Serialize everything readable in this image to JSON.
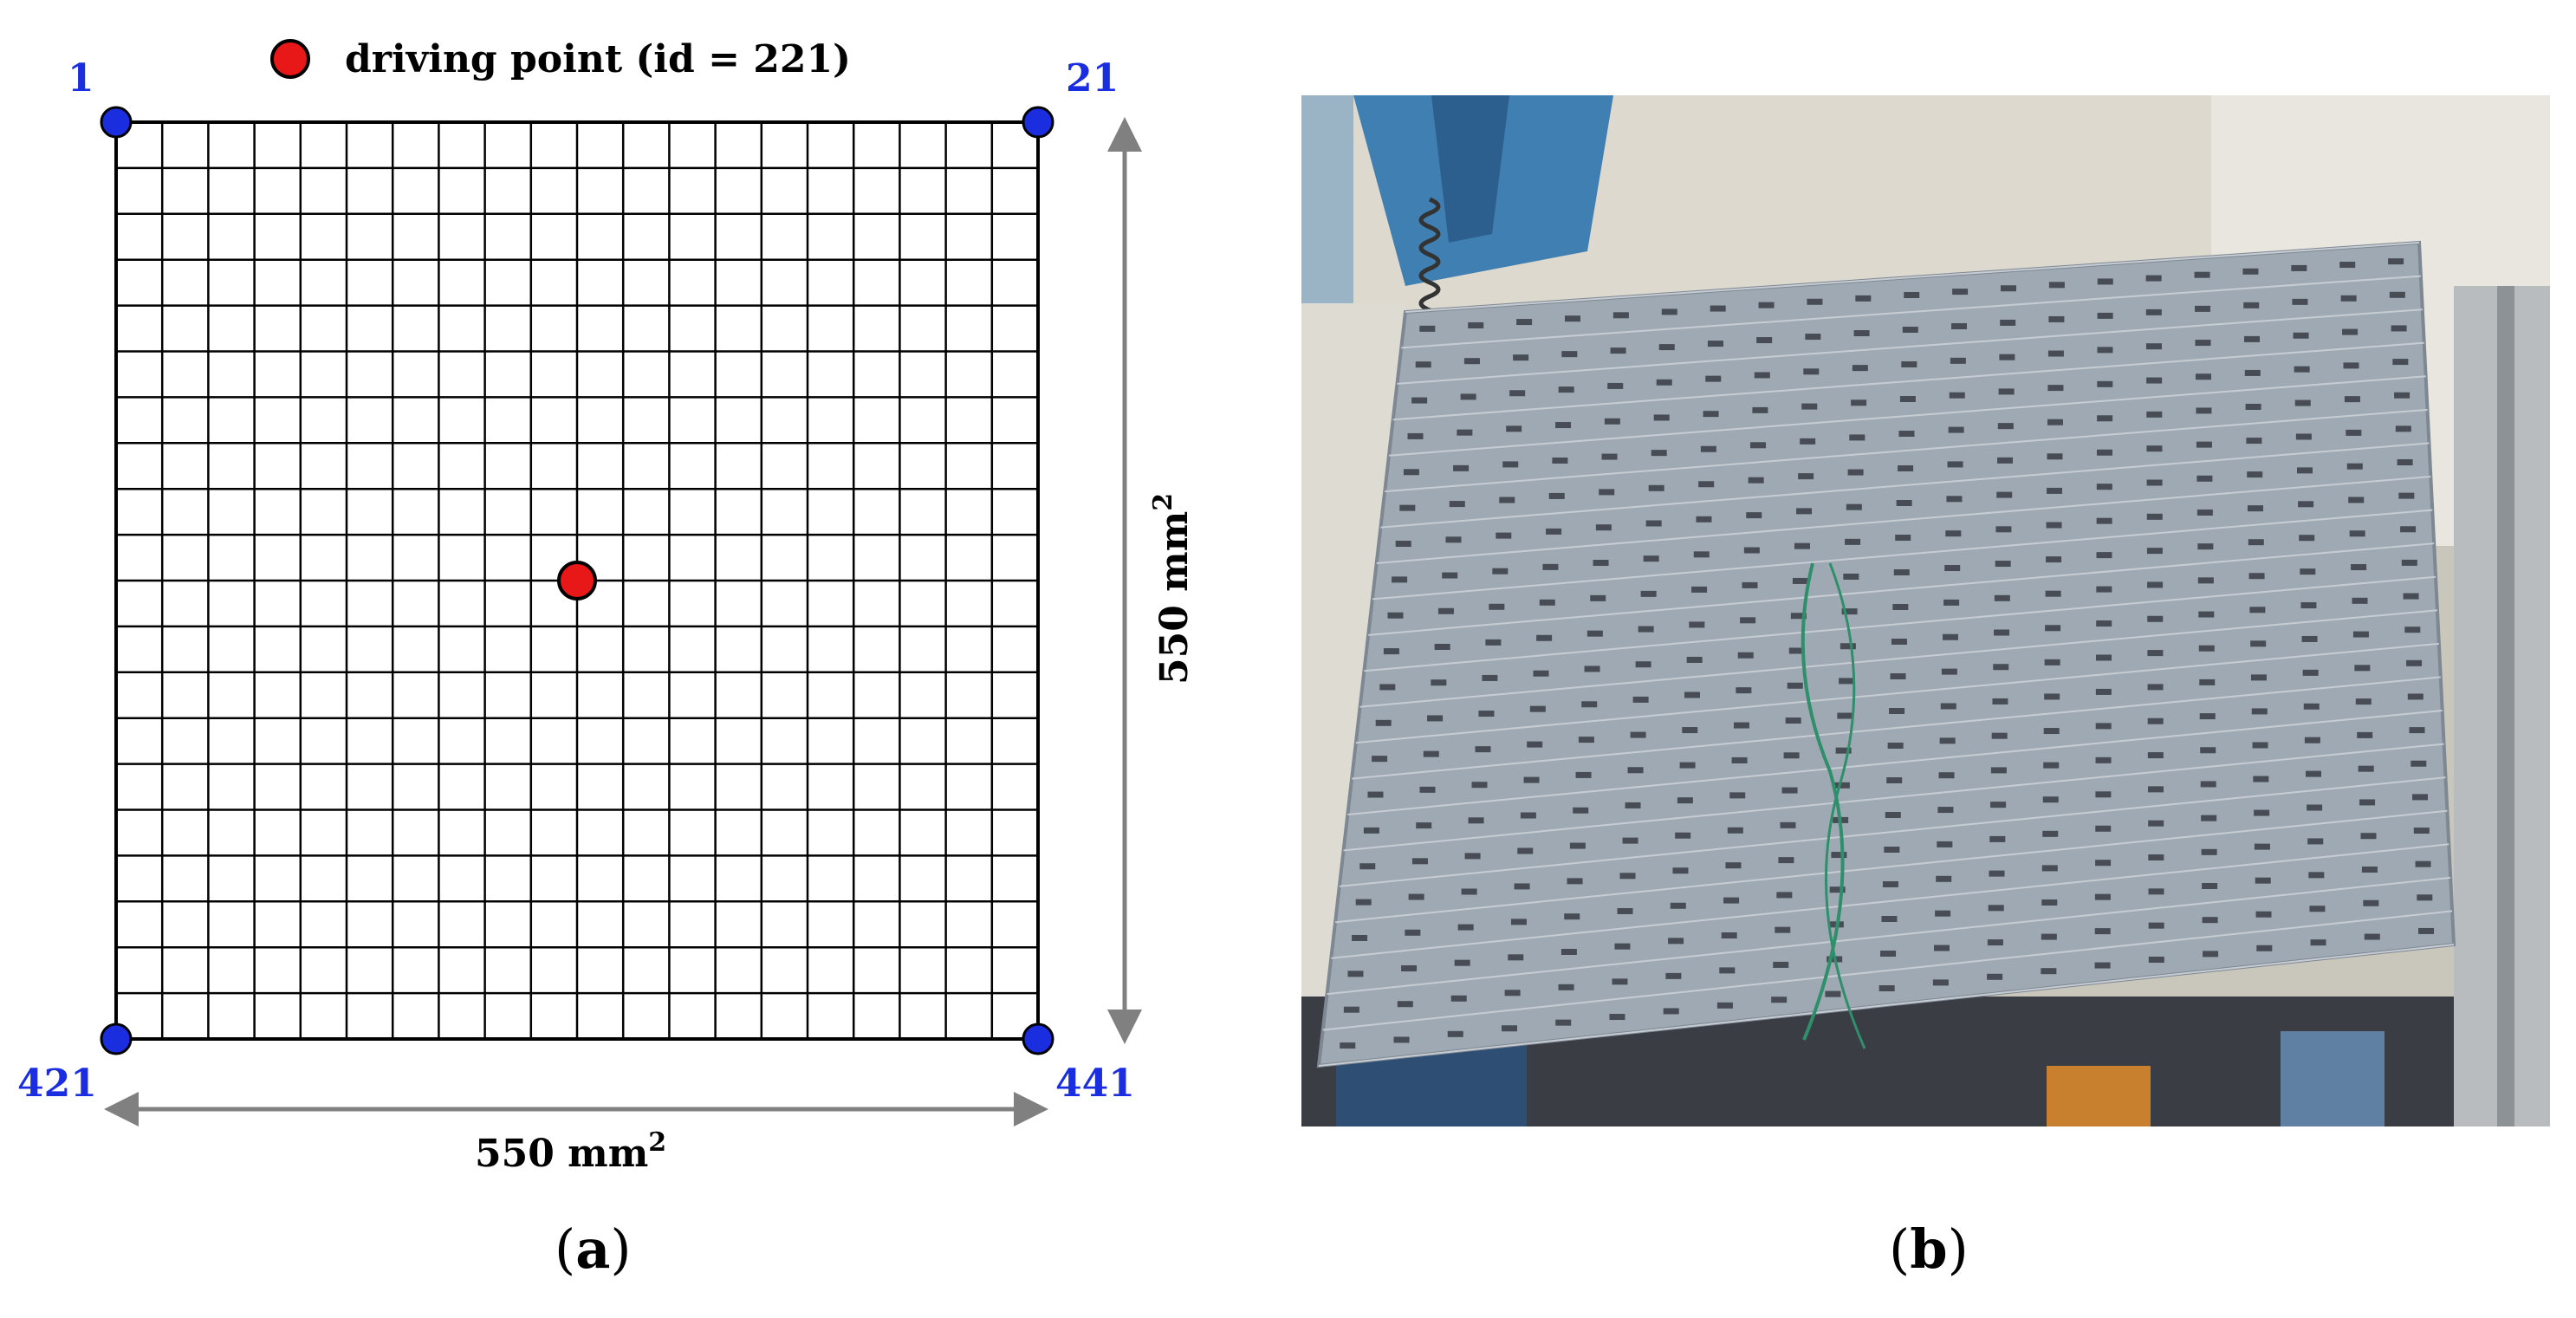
{
  "panel_a": {
    "legend_label": "driving point (id = 221)",
    "corner_labels": {
      "top_left": "1",
      "top_right": "21",
      "bottom_left": "421",
      "bottom_right": "441"
    },
    "width_dim": {
      "value": "550 mm",
      "sup": "2"
    },
    "height_dim": {
      "value": "550 mm",
      "sup": "2"
    },
    "grid": {
      "rows": 20,
      "cols": 20
    },
    "driving_point_id": 221,
    "colors": {
      "corner": "#1a2ee0",
      "driving": "#e81818",
      "label": "#1a2ee0",
      "arrow": "#808080"
    }
  },
  "panel_b": {
    "image_description_icon": "photo-of-instrumented-plate",
    "grid": {
      "rows": 21,
      "cols": 21
    }
  },
  "captions": {
    "a_open": "(",
    "a_letter": "a",
    "a_close": ")",
    "b_open": "(",
    "b_letter": "b",
    "b_close": ")"
  }
}
